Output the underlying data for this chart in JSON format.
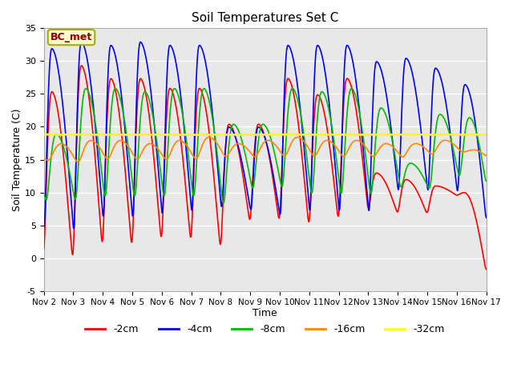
{
  "title": "Soil Temperatures Set C",
  "xlabel": "Time",
  "ylabel": "Soil Temperature (C)",
  "ylim": [
    -5,
    35
  ],
  "xlim": [
    0,
    15
  ],
  "x_tick_labels": [
    "Nov 2",
    "Nov 3",
    "Nov 4",
    "Nov 5",
    "Nov 6",
    "Nov 7",
    "Nov 8",
    "Nov 9",
    "Nov 10",
    "Nov 11",
    "Nov 12",
    "Nov 13",
    "Nov 14",
    "Nov 15",
    "Nov 16",
    "Nov 17"
  ],
  "x_ticks": [
    0,
    1,
    2,
    3,
    4,
    5,
    6,
    7,
    8,
    9,
    10,
    11,
    12,
    13,
    14,
    15
  ],
  "y_ticks": [
    -5,
    0,
    5,
    10,
    15,
    20,
    25,
    30,
    35
  ],
  "bg_color": "#e8e8e8",
  "legend_label": "BC_met",
  "legend_bg": "#ffffcc",
  "legend_border": "#aaaa00",
  "series_colors": {
    "-2cm": "#ff0000",
    "-4cm": "#0000ff",
    "-8cm": "#00bb00",
    "-16cm": "#ff8800",
    "-32cm": "#ffff00"
  },
  "series_linewidths": {
    "-2cm": 1.2,
    "-4cm": 1.2,
    "-8cm": 1.2,
    "-16cm": 1.2,
    "-32cm": 2.0
  },
  "day_peaks_2cm": [
    25.5,
    29.5,
    27.5,
    27.5,
    26.0,
    26.0,
    20.5,
    20.5,
    27.5,
    25.0,
    27.5,
    13.0,
    12.0,
    11.0,
    10.0
  ],
  "day_troughs_2cm": [
    -2.5,
    -2.0,
    0.0,
    0.0,
    1.0,
    1.0,
    0.0,
    4.5,
    4.5,
    3.5,
    4.5,
    6.5,
    6.5,
    6.5,
    9.5
  ],
  "day_peaks_4cm": [
    32.0,
    33.0,
    32.5,
    33.0,
    32.5,
    32.5,
    20.0,
    20.0,
    32.5,
    32.5,
    32.5,
    30.0,
    30.5,
    29.0,
    26.5
  ],
  "day_troughs_4cm": [
    3.5,
    2.5,
    4.5,
    4.5,
    5.0,
    5.5,
    6.5,
    6.5,
    5.5,
    5.5,
    5.5,
    5.5,
    9.0,
    9.0,
    9.0
  ],
  "day_peaks_8cm": [
    19.0,
    26.0,
    26.0,
    25.5,
    26.0,
    26.0,
    20.5,
    20.5,
    26.0,
    25.5,
    26.0,
    23.0,
    14.5,
    22.0,
    21.5
  ],
  "day_troughs_8cm": [
    7.5,
    7.5,
    7.5,
    7.5,
    7.5,
    7.5,
    6.5,
    9.5,
    9.5,
    8.0,
    8.0,
    8.0,
    10.0,
    10.0,
    11.5
  ],
  "day_peaks_16cm": [
    17.5,
    18.0,
    18.0,
    17.5,
    18.0,
    18.5,
    17.5,
    18.0,
    18.5,
    18.0,
    18.0,
    17.5,
    17.5,
    18.0,
    16.5
  ],
  "day_troughs_16cm": [
    14.5,
    14.0,
    14.5,
    14.5,
    14.5,
    14.5,
    15.0,
    15.0,
    15.0,
    15.0,
    15.0,
    15.0,
    15.0,
    15.5,
    16.0
  ],
  "flat_32cm": 18.8
}
